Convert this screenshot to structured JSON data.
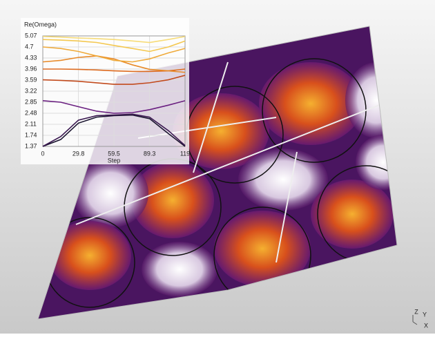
{
  "chart_data": {
    "type": "line",
    "title": "Re(Omega)",
    "x_label": "Step",
    "x": [
      0,
      15,
      29.8,
      45,
      59.5,
      75,
      89.3,
      105,
      119
    ],
    "xlim": [
      0,
      119
    ],
    "xticks": [
      0,
      29.8,
      59.5,
      89.3,
      119
    ],
    "ylim": [
      1.37,
      5.07
    ],
    "yticks": [
      1.37,
      1.74,
      2.11,
      2.48,
      2.85,
      3.22,
      3.59,
      3.96,
      4.33,
      4.7,
      5.07
    ],
    "grid": true,
    "series": [
      {
        "color": "#1b1530",
        "values": [
          1.37,
          1.6,
          2.15,
          2.35,
          2.4,
          2.42,
          2.3,
          1.8,
          1.37
        ]
      },
      {
        "color": "#3a1850",
        "values": [
          1.37,
          1.7,
          2.25,
          2.4,
          2.42,
          2.45,
          2.35,
          1.9,
          1.4
        ]
      },
      {
        "color": "#6a1f80",
        "values": [
          2.9,
          2.85,
          2.7,
          2.55,
          2.48,
          2.5,
          2.6,
          2.75,
          2.9
        ]
      },
      {
        "color": "#c24a1c",
        "values": [
          3.6,
          3.58,
          3.55,
          3.5,
          3.45,
          3.45,
          3.5,
          3.6,
          3.75
        ]
      },
      {
        "color": "#dd6a1e",
        "values": [
          3.96,
          3.96,
          3.95,
          3.93,
          3.9,
          3.88,
          3.88,
          3.9,
          3.96
        ]
      },
      {
        "color": "#e88a28",
        "values": [
          4.2,
          4.25,
          4.35,
          4.4,
          4.3,
          4.1,
          3.95,
          3.9,
          3.85
        ]
      },
      {
        "color": "#efaa3a",
        "values": [
          4.7,
          4.65,
          4.55,
          4.4,
          4.25,
          4.2,
          4.3,
          4.5,
          4.65
        ]
      },
      {
        "color": "#f4c850",
        "values": [
          4.95,
          4.93,
          4.9,
          4.85,
          4.75,
          4.65,
          4.55,
          4.7,
          4.9
        ]
      },
      {
        "color": "#f7dc78",
        "values": [
          5.05,
          5.03,
          5.0,
          4.98,
          4.95,
          4.9,
          4.85,
          4.95,
          5.05
        ]
      }
    ]
  },
  "view_axes": {
    "z": "Z",
    "y": "Y",
    "x": "X"
  }
}
